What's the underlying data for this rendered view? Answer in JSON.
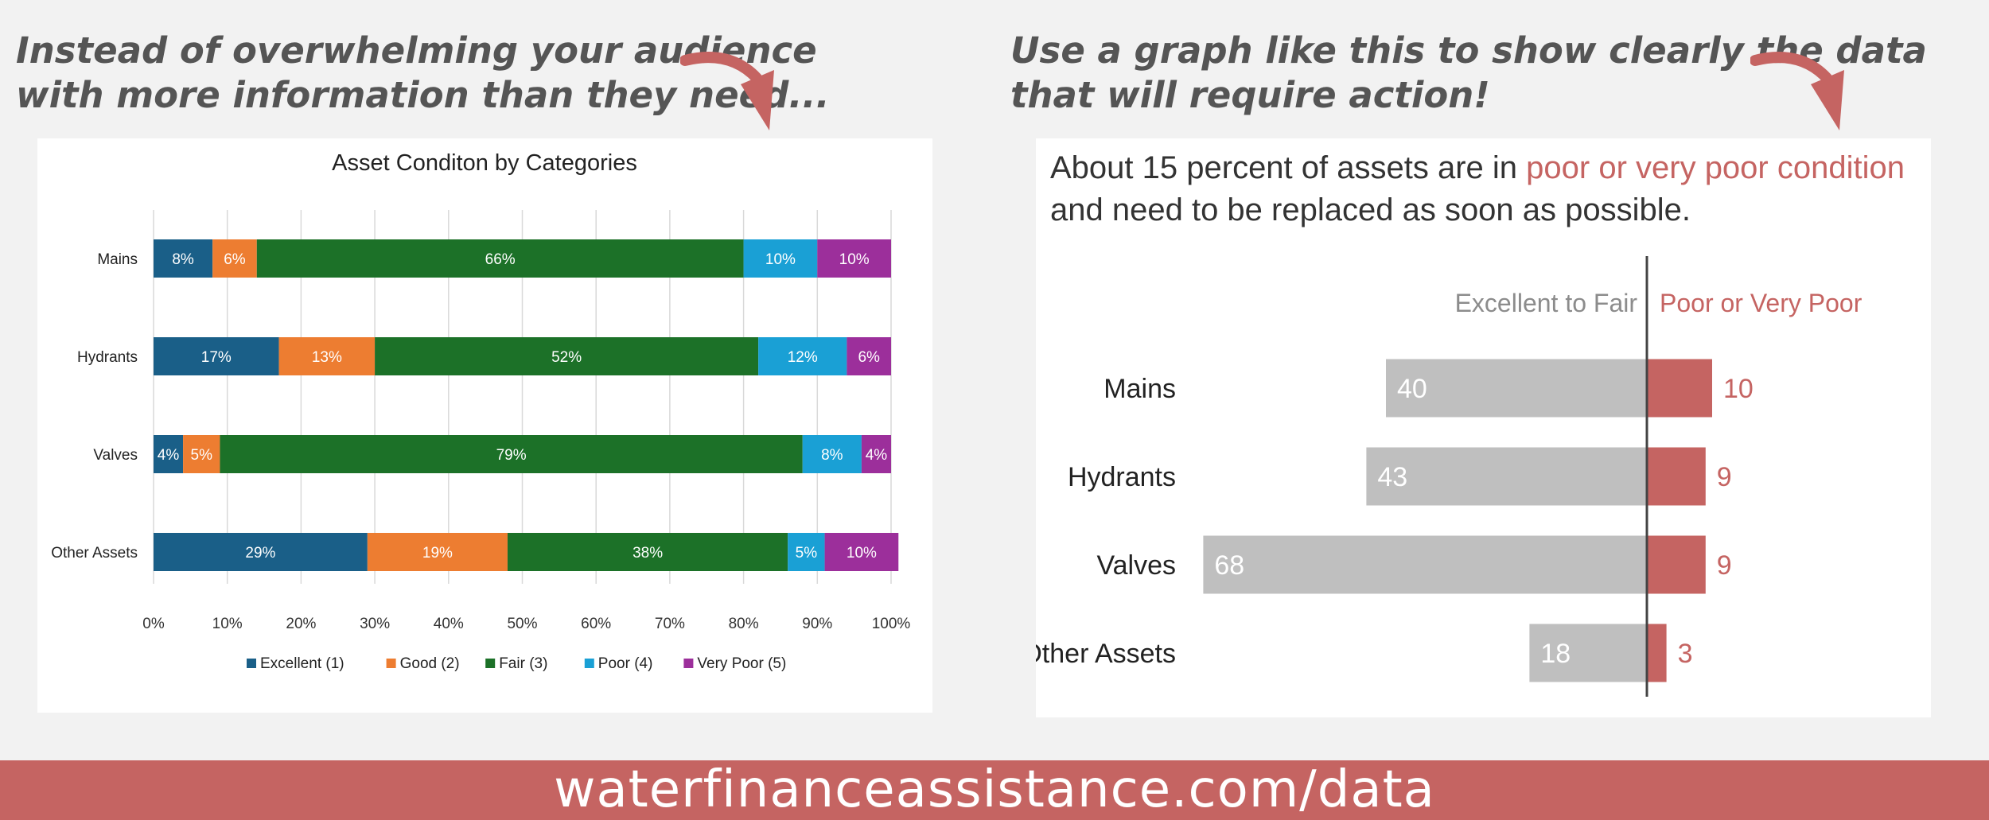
{
  "left_headline": {
    "line1": "Instead of overwhelming your audience",
    "line2": "with more information than they need..."
  },
  "right_headline": {
    "line1": "Use a graph like this to show clearly the data",
    "line2": "that will require action!"
  },
  "footer": {
    "url": "waterfinanceassistance.com/data"
  },
  "colors": {
    "accent": "#c56462",
    "grey_bar": "#bfbfbf",
    "excellent": "#1a5f88",
    "good": "#ed7d31",
    "fair": "#1c7128",
    "poor": "#1aa0d5",
    "very_poor": "#9c2f9b"
  },
  "icons": [
    "curved-arrow-icon"
  ],
  "chart_data": [
    {
      "type": "bar",
      "orientation": "horizontal",
      "stacked": "percent",
      "title": "Asset Conditon by Categories",
      "categories": [
        "Mains",
        "Hydrants",
        "Valves",
        "Other Assets"
      ],
      "series": [
        {
          "name": "Excellent (1)",
          "color": "#1a5f88",
          "values": [
            8,
            17,
            4,
            29
          ]
        },
        {
          "name": "Good (2)",
          "color": "#ed7d31",
          "values": [
            6,
            13,
            5,
            19
          ]
        },
        {
          "name": "Fair (3)",
          "color": "#1c7128",
          "values": [
            66,
            52,
            79,
            38
          ]
        },
        {
          "name": "Poor (4)",
          "color": "#1aa0d5",
          "values": [
            10,
            12,
            8,
            5
          ]
        },
        {
          "name": "Very Poor (5)",
          "color": "#9c2f9b",
          "values": [
            10,
            6,
            4,
            10
          ]
        }
      ],
      "xlim": [
        0,
        100
      ],
      "x_ticks": [
        "0%",
        "10%",
        "20%",
        "30%",
        "40%",
        "50%",
        "60%",
        "70%",
        "80%",
        "90%",
        "100%"
      ],
      "grid": true,
      "legend": "bottom"
    },
    {
      "type": "bar",
      "orientation": "horizontal",
      "diverging": true,
      "title_parts": [
        "About 15 percent of assets are in ",
        "poor or very poor condition",
        "and need to be replaced as soon as possible."
      ],
      "categories": [
        "Mains",
        "Hydrants",
        "Valves",
        "Other Assets"
      ],
      "series": [
        {
          "name": "Excellent to Fair",
          "color": "#bfbfbf",
          "values": [
            40,
            43,
            68,
            18
          ]
        },
        {
          "name": "Poor or Very Poor",
          "color": "#c56462",
          "values": [
            10,
            9,
            9,
            3
          ]
        }
      ],
      "grid": false
    }
  ]
}
